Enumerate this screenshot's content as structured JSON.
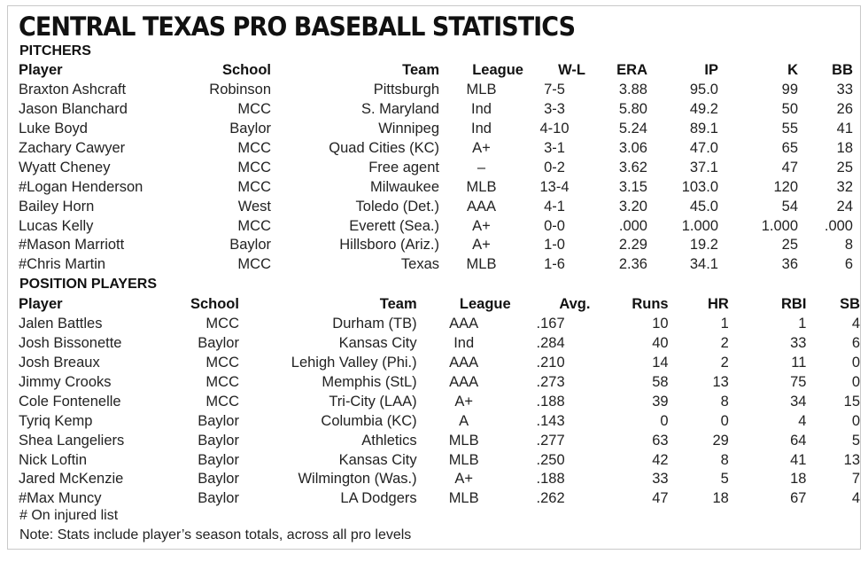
{
  "title": "CENTRAL TEXAS PRO BASEBALL STATISTICS",
  "pitchers": {
    "section_label": "PITCHERS",
    "headers": [
      "Player",
      "School",
      "Team",
      "League",
      "W-L",
      "ERA",
      "IP",
      "K",
      "BB"
    ],
    "rows": [
      [
        "Braxton Ashcraft",
        "Robinson",
        "Pittsburgh",
        "MLB",
        "7-5",
        "3.88",
        "95.0",
        "99",
        "33"
      ],
      [
        "Jason Blanchard",
        "MCC",
        "S. Maryland",
        "Ind",
        "3-3",
        "5.80",
        "49.2",
        "50",
        "26"
      ],
      [
        "Luke Boyd",
        "Baylor",
        "Winnipeg",
        "Ind",
        "4-10",
        "5.24",
        "89.1",
        "55",
        "41"
      ],
      [
        "Zachary Cawyer",
        "MCC",
        "Quad Cities (KC)",
        "A+",
        "3-1",
        "3.06",
        "47.0",
        "65",
        "18"
      ],
      [
        "Wyatt Cheney",
        "MCC",
        "Free agent",
        "–",
        "0-2",
        "3.62",
        "37.1",
        "47",
        "25"
      ],
      [
        "#Logan Henderson",
        "MCC",
        "Milwaukee",
        "MLB",
        "13-4",
        "3.15",
        "103.0",
        "120",
        "32"
      ],
      [
        "Bailey Horn",
        "West",
        "Toledo (Det.)",
        "AAA",
        "4-1",
        "3.20",
        "45.0",
        "54",
        "24"
      ],
      [
        "Lucas Kelly",
        "MCC",
        "Everett (Sea.)",
        "A+",
        "0-0",
        ".000",
        "1.000",
        "1.000",
        ".000"
      ],
      [
        "#Mason Marriott",
        "Baylor",
        "Hillsboro (Ariz.)",
        "A+",
        "1-0",
        "2.29",
        "19.2",
        "25",
        "8"
      ],
      [
        "#Chris Martin",
        "MCC",
        "Texas",
        "MLB",
        "1-6",
        "2.36",
        "34.1",
        "36",
        "6"
      ]
    ]
  },
  "position_players": {
    "section_label": "POSITION PLAYERS",
    "headers": [
      "Player",
      "School",
      "Team",
      "League",
      "Avg.",
      "Runs",
      "HR",
      "RBI",
      "SB"
    ],
    "rows": [
      [
        "Jalen Battles",
        "MCC",
        "Durham (TB)",
        "AAA",
        ".167",
        "10",
        "1",
        "1",
        "4"
      ],
      [
        "Josh Bissonette",
        "Baylor",
        "Kansas City",
        "Ind",
        ".284",
        "40",
        "2",
        "33",
        "6"
      ],
      [
        "Josh Breaux",
        "MCC",
        "Lehigh Valley (Phi.)",
        "AAA",
        ".210",
        "14",
        "2",
        "11",
        "0"
      ],
      [
        "Jimmy Crooks",
        "MCC",
        "Memphis (StL)",
        "AAA",
        ".273",
        "58",
        "13",
        "75",
        "0"
      ],
      [
        "Cole Fontenelle",
        "MCC",
        "Tri-City (LAA)",
        "A+",
        ".188",
        "39",
        "8",
        "34",
        "15"
      ],
      [
        "Tyriq Kemp",
        "Baylor",
        "Columbia (KC)",
        "A",
        ".143",
        "0",
        "0",
        "4",
        "0"
      ],
      [
        "Shea Langeliers",
        "Baylor",
        "Athletics",
        "MLB",
        ".277",
        "63",
        "29",
        "64",
        "5"
      ],
      [
        "Nick Loftin",
        "Baylor",
        "Kansas City",
        "MLB",
        ".250",
        "42",
        "8",
        "41",
        "13"
      ],
      [
        "Jared McKenzie",
        "Baylor",
        "Wilmington (Was.)",
        "A+",
        ".188",
        "33",
        "5",
        "18",
        "7"
      ],
      [
        "#Max Muncy",
        "Baylor",
        "LA Dodgers",
        "MLB",
        ".262",
        "47",
        "18",
        "67",
        "4"
      ]
    ]
  },
  "footnotes": {
    "injured": "# On injured list",
    "note": "Note: Stats include player’s season totals, across all pro levels"
  }
}
